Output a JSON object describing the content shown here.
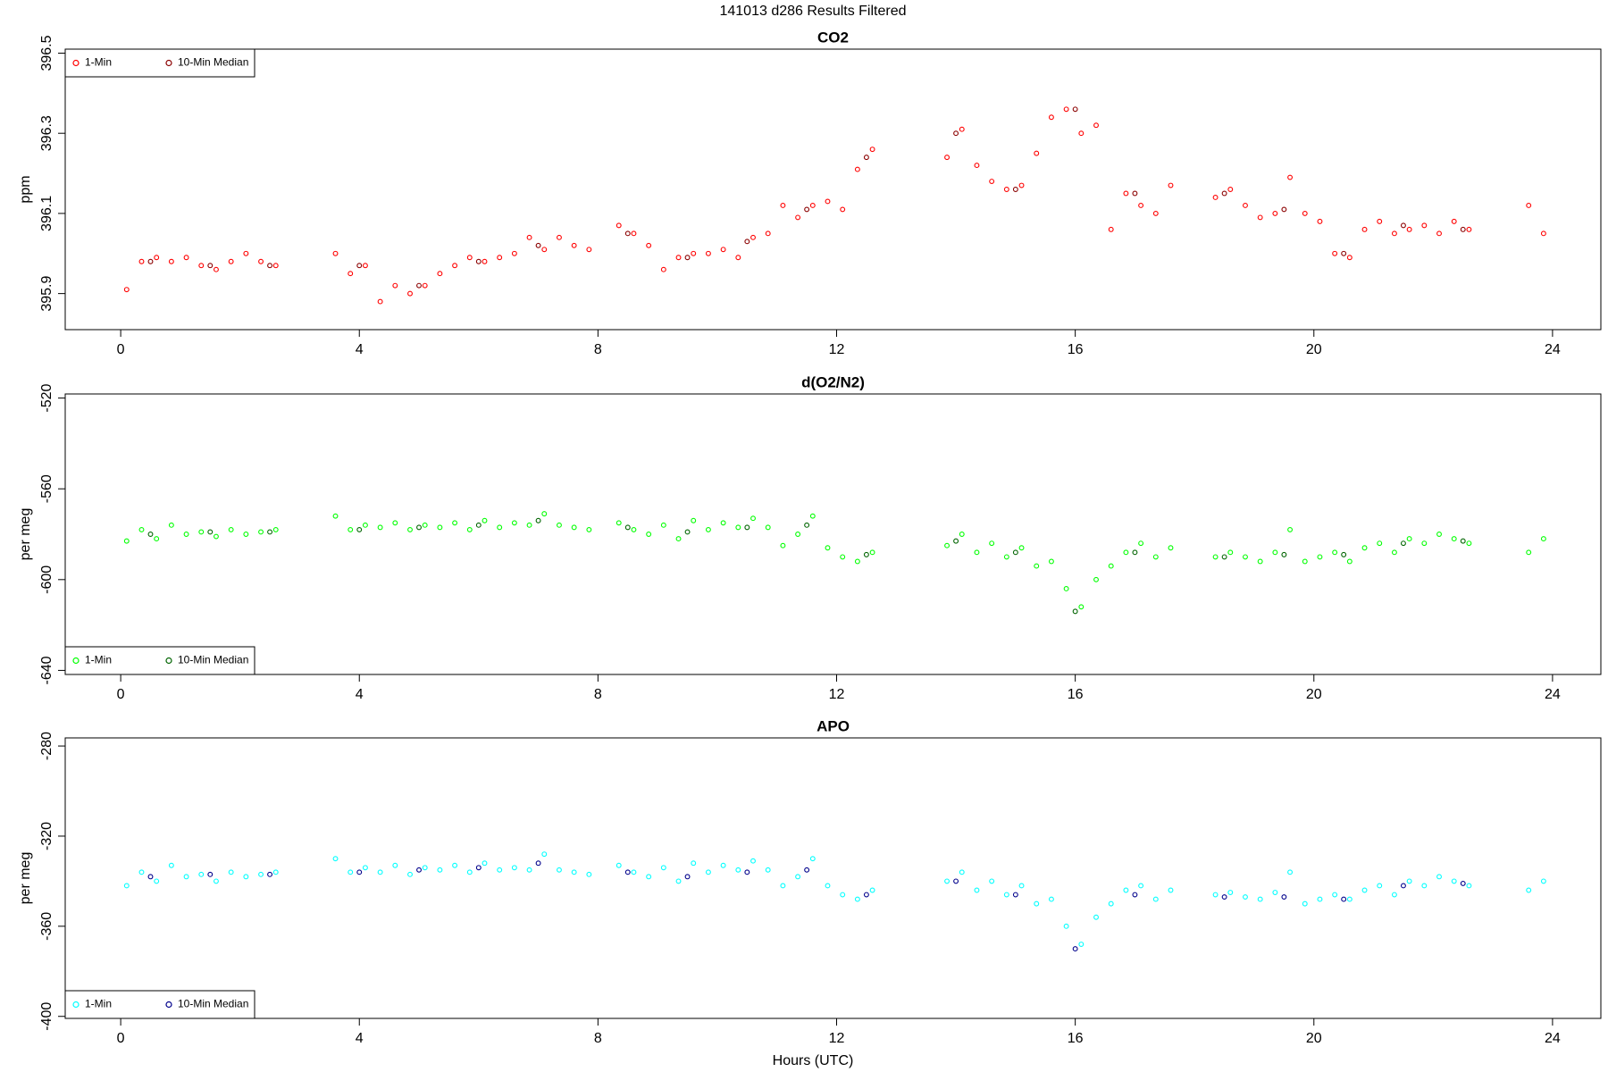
{
  "title": "141013   d286   Results Filtered",
  "xlabel": "Hours (UTC)",
  "chart_data": [
    {
      "type": "scatter",
      "title": "CO2",
      "ylabel": "ppm",
      "legend": "top-left",
      "xlim": [
        -0.93,
        24.81
      ],
      "xticks": [
        0,
        4,
        8,
        12,
        16,
        20,
        24
      ],
      "ylim": [
        395.81,
        396.51
      ],
      "yticks": [
        395.9,
        396.1,
        396.3,
        396.5
      ],
      "series": [
        {
          "name": "1-Min",
          "color": "#ff0000",
          "x": [
            0.1,
            0.35,
            0.6,
            0.85,
            1.1,
            1.35,
            1.6,
            1.85,
            2.1,
            2.35,
            2.6,
            3.6,
            3.85,
            4.1,
            4.35,
            4.6,
            4.85,
            5.1,
            5.35,
            5.6,
            5.85,
            6.1,
            6.35,
            6.6,
            6.85,
            7.1,
            7.35,
            7.6,
            7.85,
            8.35,
            8.6,
            8.85,
            9.1,
            9.35,
            9.6,
            9.85,
            10.1,
            10.35,
            10.6,
            10.85,
            11.1,
            11.35,
            11.6,
            11.85,
            12.1,
            12.35,
            12.6,
            13.85,
            14.1,
            14.35,
            14.6,
            14.85,
            15.1,
            15.35,
            15.6,
            15.85,
            16.1,
            16.35,
            16.6,
            16.85,
            17.1,
            17.35,
            17.6,
            18.35,
            18.6,
            18.85,
            19.1,
            19.35,
            19.6,
            19.85,
            20.1,
            20.35,
            20.6,
            20.85,
            21.1,
            21.35,
            21.6,
            21.85,
            22.1,
            22.35,
            22.6,
            23.6,
            23.85
          ],
          "values": [
            395.91,
            395.98,
            395.99,
            395.98,
            395.99,
            395.97,
            395.96,
            395.98,
            396.0,
            395.98,
            395.97,
            396.0,
            395.95,
            395.97,
            395.88,
            395.92,
            395.9,
            395.92,
            395.95,
            395.97,
            395.99,
            395.98,
            395.99,
            396.0,
            396.04,
            396.01,
            396.04,
            396.02,
            396.01,
            396.07,
            396.05,
            396.02,
            395.96,
            395.99,
            396.0,
            396.0,
            396.01,
            395.99,
            396.04,
            396.05,
            396.12,
            396.09,
            396.12,
            396.13,
            396.11,
            396.21,
            396.26,
            396.24,
            396.31,
            396.22,
            396.18,
            396.16,
            396.17,
            396.25,
            396.34,
            396.36,
            396.3,
            396.32,
            396.06,
            396.15,
            396.12,
            396.1,
            396.17,
            396.14,
            396.16,
            396.12,
            396.09,
            396.1,
            396.19,
            396.1,
            396.08,
            396.0,
            395.99,
            396.06,
            396.08,
            396.05,
            396.06,
            396.07,
            396.05,
            396.08,
            396.06,
            396.12,
            396.05
          ]
        },
        {
          "name": "10-Min Median",
          "color": "#8b0000",
          "x": [
            0.5,
            1.5,
            2.5,
            4.0,
            5.0,
            6.0,
            7.0,
            8.5,
            9.5,
            10.5,
            11.5,
            12.5,
            14.0,
            15.0,
            16.0,
            17.0,
            18.5,
            19.5,
            20.5,
            21.5,
            22.5
          ],
          "values": [
            395.98,
            395.97,
            395.97,
            395.97,
            395.92,
            395.98,
            396.02,
            396.05,
            395.99,
            396.03,
            396.11,
            396.24,
            396.3,
            396.16,
            396.36,
            396.15,
            396.15,
            396.11,
            396.0,
            396.07,
            396.06
          ]
        }
      ]
    },
    {
      "type": "scatter",
      "title": "d(O2/N2)",
      "ylabel": "per meg",
      "legend": "bottom-left",
      "xlim": [
        -0.93,
        24.81
      ],
      "xticks": [
        0,
        4,
        8,
        12,
        16,
        20,
        24
      ],
      "ylim": [
        -641.8,
        -518.2
      ],
      "yticks": [
        -520,
        -560,
        -600,
        -640
      ],
      "series": [
        {
          "name": "1-Min",
          "color": "#00ff00",
          "x": [
            0.1,
            0.35,
            0.6,
            0.85,
            1.1,
            1.35,
            1.6,
            1.85,
            2.1,
            2.35,
            2.6,
            3.6,
            3.85,
            4.1,
            4.35,
            4.6,
            4.85,
            5.1,
            5.35,
            5.6,
            5.85,
            6.1,
            6.35,
            6.6,
            6.85,
            7.1,
            7.35,
            7.6,
            7.85,
            8.35,
            8.6,
            8.85,
            9.1,
            9.35,
            9.6,
            9.85,
            10.1,
            10.35,
            10.6,
            10.85,
            11.1,
            11.35,
            11.6,
            11.85,
            12.1,
            12.35,
            12.6,
            13.85,
            14.1,
            14.35,
            14.6,
            14.85,
            15.1,
            15.35,
            15.6,
            15.85,
            16.1,
            16.35,
            16.6,
            16.85,
            17.1,
            17.35,
            17.6,
            18.35,
            18.6,
            18.85,
            19.1,
            19.35,
            19.6,
            19.85,
            20.1,
            20.35,
            20.6,
            20.85,
            21.1,
            21.35,
            21.6,
            21.85,
            22.1,
            22.35,
            22.6,
            23.6,
            23.85
          ],
          "values": [
            -583,
            -578,
            -582,
            -576,
            -580,
            -579,
            -581,
            -578,
            -580,
            -579,
            -578,
            -572,
            -578,
            -576,
            -577,
            -575,
            -578,
            -576,
            -577,
            -575,
            -578,
            -574,
            -577,
            -575,
            -576,
            -571,
            -576,
            -577,
            -578,
            -575,
            -578,
            -580,
            -576,
            -582,
            -574,
            -578,
            -575,
            -577,
            -573,
            -577,
            -585,
            -580,
            -572,
            -586,
            -590,
            -592,
            -588,
            -585,
            -580,
            -588,
            -584,
            -590,
            -586,
            -594,
            -592,
            -604,
            -612,
            -600,
            -594,
            -588,
            -584,
            -590,
            -586,
            -590,
            -588,
            -590,
            -592,
            -588,
            -578,
            -592,
            -590,
            -588,
            -592,
            -586,
            -584,
            -588,
            -582,
            -584,
            -580,
            -582,
            -584,
            -588,
            -582
          ]
        },
        {
          "name": "10-Min Median",
          "color": "#006400",
          "x": [
            0.5,
            1.5,
            2.5,
            4.0,
            5.0,
            6.0,
            7.0,
            8.5,
            9.5,
            10.5,
            11.5,
            12.5,
            14.0,
            15.0,
            16.0,
            17.0,
            18.5,
            19.5,
            20.5,
            21.5,
            22.5
          ],
          "values": [
            -580,
            -579,
            -579,
            -578,
            -577,
            -576,
            -574,
            -577,
            -579,
            -577,
            -576,
            -589,
            -583,
            -588,
            -614,
            -588,
            -590,
            -589,
            -589,
            -584,
            -583
          ]
        }
      ]
    },
    {
      "type": "scatter",
      "title": "APO",
      "ylabel": "per meg",
      "legend": "bottom-left",
      "xlim": [
        -0.93,
        24.81
      ],
      "xticks": [
        0,
        4,
        8,
        12,
        16,
        20,
        24
      ],
      "ylim": [
        -400.9,
        -276.4
      ],
      "yticks": [
        -280,
        -320,
        -360,
        -400
      ],
      "series": [
        {
          "name": "1-Min",
          "color": "#00ffff",
          "x": [
            0.1,
            0.35,
            0.6,
            0.85,
            1.1,
            1.35,
            1.6,
            1.85,
            2.1,
            2.35,
            2.6,
            3.6,
            3.85,
            4.1,
            4.35,
            4.6,
            4.85,
            5.1,
            5.35,
            5.6,
            5.85,
            6.1,
            6.35,
            6.6,
            6.85,
            7.1,
            7.35,
            7.6,
            7.85,
            8.35,
            8.6,
            8.85,
            9.1,
            9.35,
            9.6,
            9.85,
            10.1,
            10.35,
            10.6,
            10.85,
            11.1,
            11.35,
            11.6,
            11.85,
            12.1,
            12.35,
            12.6,
            13.85,
            14.1,
            14.35,
            14.6,
            14.85,
            15.1,
            15.35,
            15.6,
            15.85,
            16.1,
            16.35,
            16.6,
            16.85,
            17.1,
            17.35,
            17.6,
            18.35,
            18.6,
            18.85,
            19.1,
            19.35,
            19.6,
            19.85,
            20.1,
            20.35,
            20.6,
            20.85,
            21.1,
            21.35,
            21.6,
            21.85,
            22.1,
            22.35,
            22.6,
            23.6,
            23.85
          ],
          "values": [
            -342,
            -336,
            -340,
            -333,
            -338,
            -337,
            -340,
            -336,
            -338,
            -337,
            -336,
            -330,
            -336,
            -334,
            -336,
            -333,
            -337,
            -334,
            -335,
            -333,
            -336,
            -332,
            -335,
            -334,
            -335,
            -328,
            -335,
            -336,
            -337,
            -333,
            -336,
            -338,
            -334,
            -340,
            -332,
            -336,
            -333,
            -335,
            -331,
            -335,
            -342,
            -338,
            -330,
            -342,
            -346,
            -348,
            -344,
            -340,
            -336,
            -344,
            -340,
            -346,
            -342,
            -350,
            -348,
            -360,
            -368,
            -356,
            -350,
            -344,
            -342,
            -348,
            -344,
            -346,
            -345,
            -347,
            -348,
            -345,
            -336,
            -350,
            -348,
            -346,
            -348,
            -344,
            -342,
            -346,
            -340,
            -342,
            -338,
            -340,
            -342,
            -344,
            -340
          ]
        },
        {
          "name": "10-Min Median",
          "color": "#00008b",
          "x": [
            0.5,
            1.5,
            2.5,
            4.0,
            5.0,
            6.0,
            7.0,
            8.5,
            9.5,
            10.5,
            11.5,
            12.5,
            14.0,
            15.0,
            16.0,
            17.0,
            18.5,
            19.5,
            20.5,
            21.5,
            22.5
          ],
          "values": [
            -338,
            -337,
            -337,
            -336,
            -335,
            -334,
            -332,
            -336,
            -338,
            -336,
            -335,
            -346,
            -340,
            -346,
            -370,
            -346,
            -347,
            -347,
            -348,
            -342,
            -341
          ]
        }
      ]
    }
  ]
}
